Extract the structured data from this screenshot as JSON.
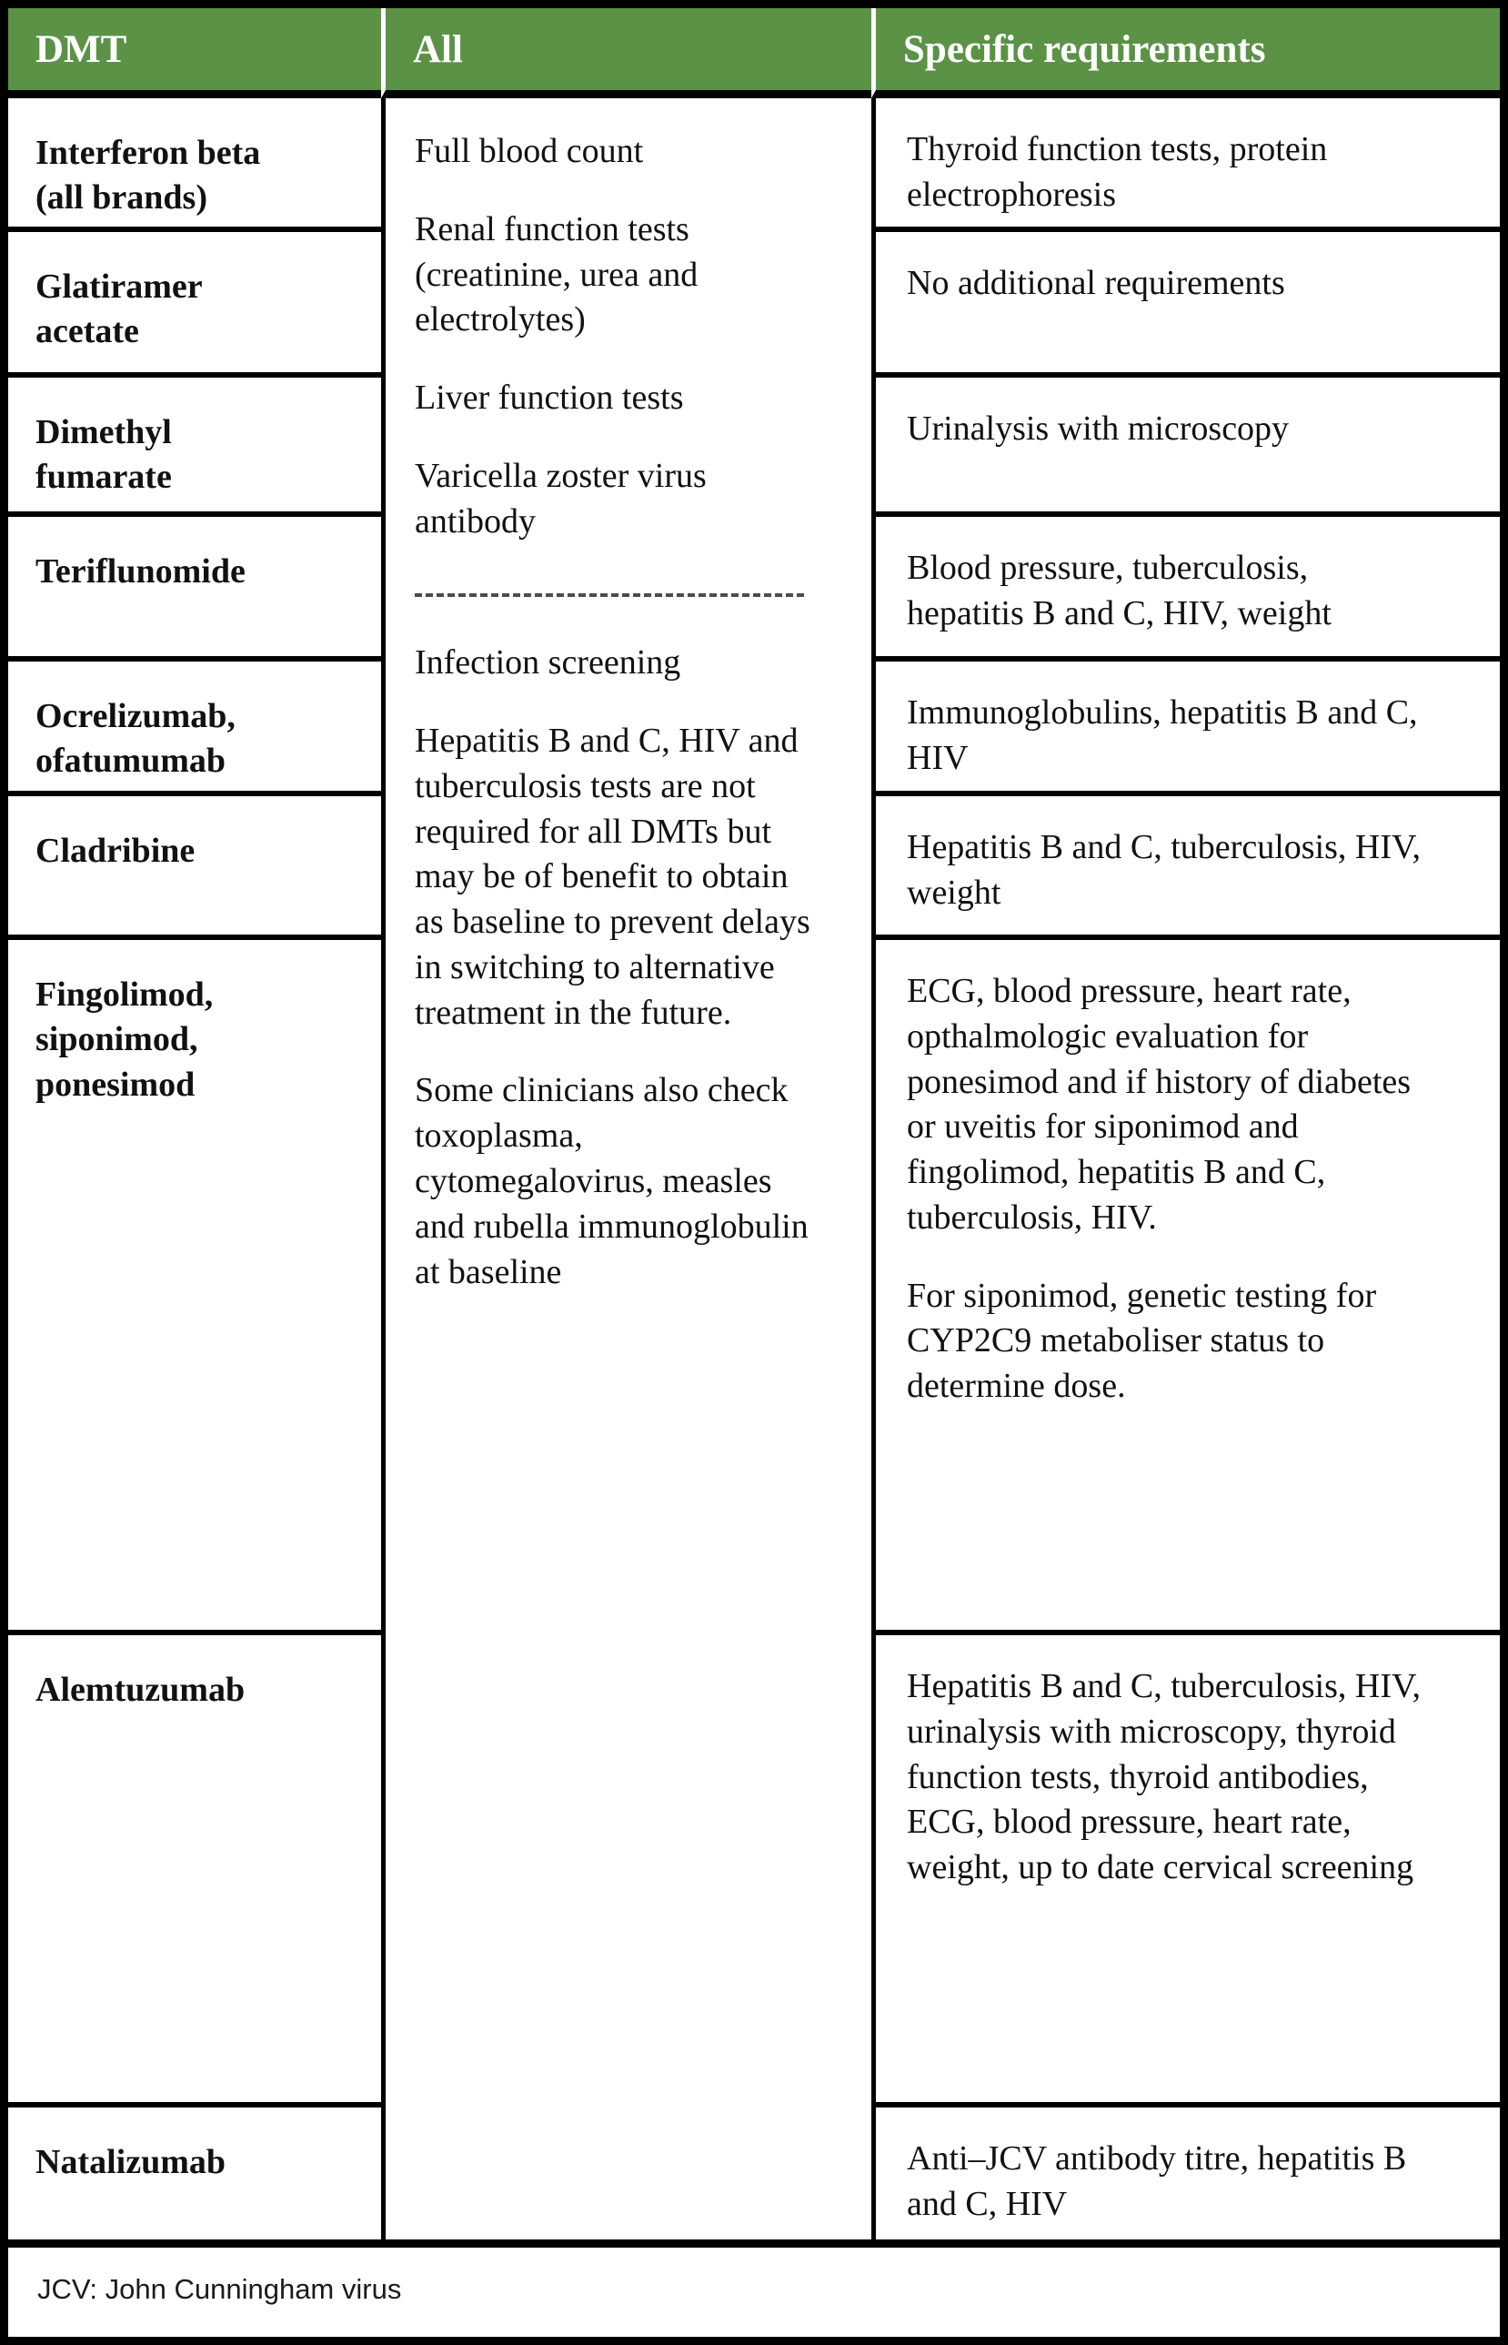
{
  "table": {
    "header": {
      "dmt": "DMT",
      "all": "All",
      "specific": "Specific requirements"
    },
    "all_column": {
      "before": [
        "Full blood count",
        "Renal function tests (creatinine, urea and electrolytes)",
        "Liver function tests",
        "Varicella zoster virus antibody"
      ],
      "divider": "dashed-line",
      "after": [
        "Infection screening",
        "Hepatitis B and C, HIV and tuberculosis tests are not required for all DMTs but may be of benefit to obtain as baseline to prevent delays in switching to alternative treatment in the future.",
        "Some clinicians also check toxoplasma, cytomegalovirus, measles and rubella immunoglobulin at baseline"
      ]
    },
    "rows": [
      {
        "dmt": "Interferon beta (all brands)",
        "specific": "Thyroid function tests, protein electrophoresis"
      },
      {
        "dmt": "Glatiramer acetate",
        "specific": "No additional requirements"
      },
      {
        "dmt": "Dimethyl fumarate",
        "specific": "Urinalysis with microscopy"
      },
      {
        "dmt": "Teriflunomide",
        "specific": "Blood pressure, tuberculosis, hepatitis B and C, HIV, weight"
      },
      {
        "dmt": "Ocrelizumab, ofatumumab",
        "specific": "Immunoglobulins, hepatitis B and C, HIV"
      },
      {
        "dmt": "Cladribine",
        "specific": "Hepatitis B and C, tuberculosis, HIV, weight"
      },
      {
        "dmt": "Fingolimod, siponimod, ponesimod",
        "specific": [
          "ECG, blood pressure, heart rate, opthalmologic evaluation for ponesimod and if history of diabetes or uveitis for siponimod and fingolimod, hepatitis B and C, tuberculosis, HIV.",
          "For siponimod, genetic testing for CYP2C9 metaboliser status to determine dose."
        ]
      },
      {
        "dmt": "Alemtuzumab",
        "specific": "Hepatitis B and C, tuberculosis, HIV, urinalysis with microscopy, thyroid function tests, thyroid antibodies, ECG, blood pressure, heart rate, weight, up to date cervical screening"
      },
      {
        "dmt": "Natalizumab",
        "specific": "Anti–JCV antibody titre, hepatitis B and C, HIV"
      }
    ],
    "footnote": "JCV: John Cunningham virus",
    "colors": {
      "header_bg": "#5b9246",
      "header_text": "#ffffff",
      "grid_border": "#000000",
      "divider": "#4c4c4c",
      "footnote_text": "#1a1a1a"
    }
  }
}
